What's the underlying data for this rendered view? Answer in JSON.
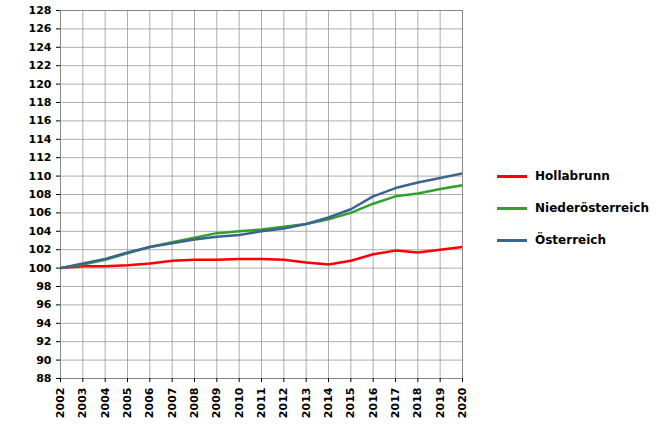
{
  "chart_data": {
    "type": "line",
    "x": [
      2002,
      2003,
      2004,
      2005,
      2006,
      2007,
      2008,
      2009,
      2010,
      2011,
      2012,
      2013,
      2014,
      2015,
      2016,
      2017,
      2018,
      2019,
      2020
    ],
    "xlim": [
      2002,
      2020
    ],
    "xticks": [
      2002,
      2003,
      2004,
      2005,
      2006,
      2007,
      2008,
      2009,
      2010,
      2011,
      2012,
      2013,
      2014,
      2015,
      2016,
      2017,
      2018,
      2019,
      2020
    ],
    "ylim": [
      88,
      128
    ],
    "yticks": [
      88,
      90,
      92,
      94,
      96,
      98,
      100,
      102,
      104,
      106,
      108,
      110,
      112,
      114,
      116,
      118,
      120,
      122,
      124,
      126,
      128
    ],
    "grid": true,
    "legend": "right",
    "series": [
      {
        "name": "Hollabrunn",
        "color": "#ff0000",
        "values": [
          100,
          100.2,
          100.2,
          100.3,
          100.5,
          100.8,
          100.9,
          100.9,
          101.0,
          101.0,
          100.9,
          100.6,
          100.4,
          100.8,
          101.5,
          101.9,
          101.7,
          102.0,
          102.3
        ]
      },
      {
        "name": "Niederösterreich",
        "color": "#33a02c",
        "values": [
          100,
          100.4,
          100.9,
          101.6,
          102.3,
          102.8,
          103.3,
          103.8,
          104.0,
          104.2,
          104.5,
          104.8,
          105.3,
          106.0,
          107.0,
          107.8,
          108.1,
          108.6,
          109.0
        ]
      },
      {
        "name": "Österreich",
        "color": "#3c6490",
        "values": [
          100,
          100.5,
          101.0,
          101.7,
          102.3,
          102.7,
          103.1,
          103.4,
          103.6,
          104.0,
          104.3,
          104.8,
          105.5,
          106.4,
          107.8,
          108.7,
          109.3,
          109.8,
          110.3
        ]
      }
    ]
  }
}
